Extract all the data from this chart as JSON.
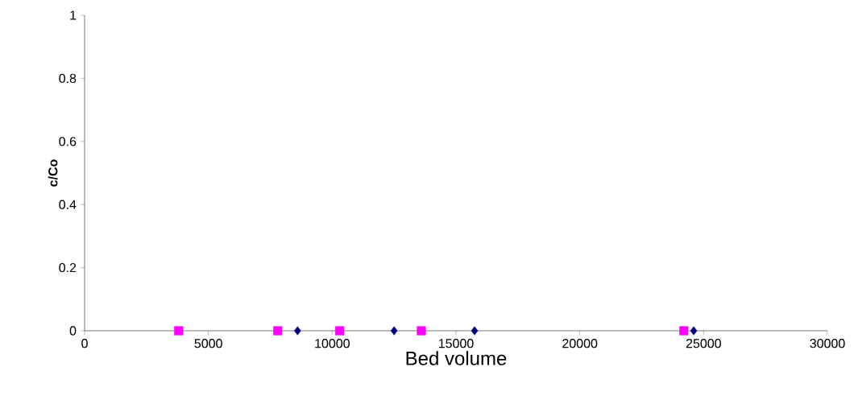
{
  "chart_data": {
    "type": "scatter",
    "xlabel": "Bed volume",
    "ylabel": "c/Co",
    "xlim": [
      0,
      30000
    ],
    "ylim": [
      0,
      1
    ],
    "xticks": [
      0,
      5000,
      10000,
      15000,
      20000,
      25000,
      30000
    ],
    "yticks": [
      0,
      0.2,
      0.4,
      0.6,
      0.8,
      1
    ],
    "series": [
      {
        "color": "#000080",
        "marker": "diamond",
        "x": [
          8600,
          12500,
          15750,
          24600
        ],
        "values": [
          0,
          0,
          0,
          0
        ]
      },
      {
        "color": "#ff00ff",
        "marker": "square",
        "x": [
          3800,
          7800,
          10300,
          13600,
          24200
        ],
        "values": [
          0,
          0,
          0,
          0,
          0
        ]
      }
    ]
  }
}
